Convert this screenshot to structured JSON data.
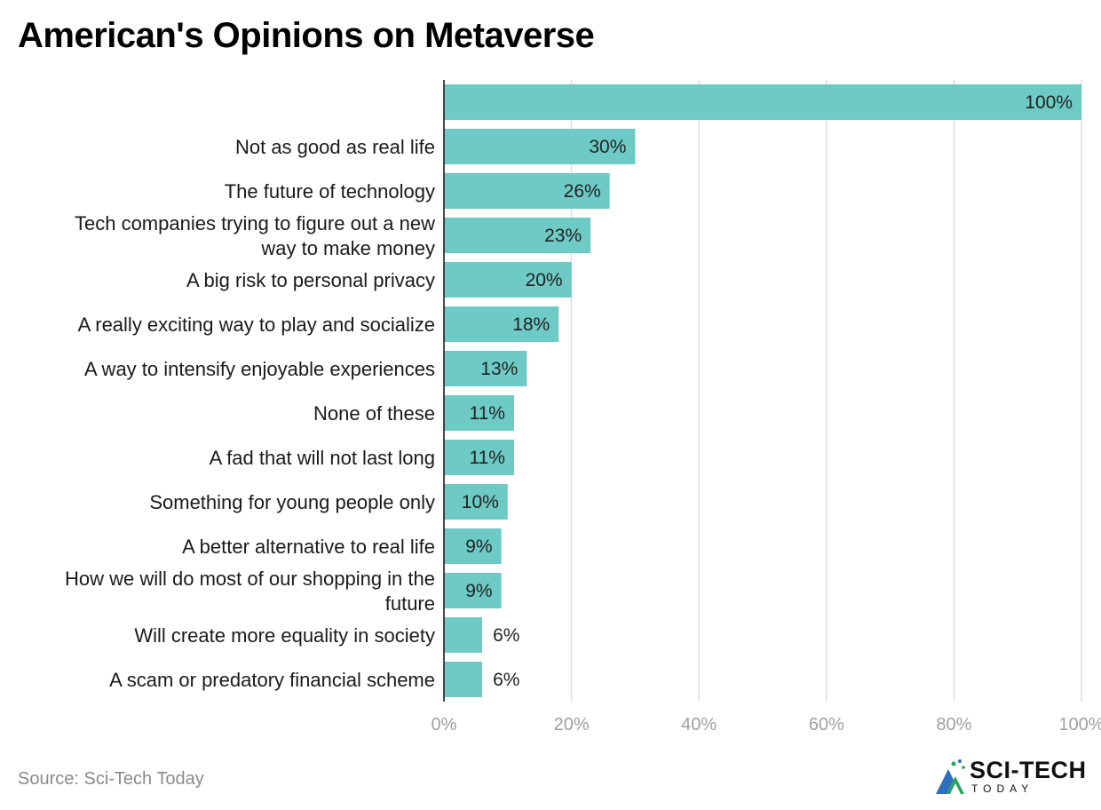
{
  "chart_data": {
    "type": "bar",
    "orientation": "horizontal",
    "title": "American's Opinions on Metaverse",
    "categories": [
      "",
      "Not as good as real life",
      "The future of technology",
      "Tech companies trying to figure out a new way to make money",
      "A big risk to personal privacy",
      "A really exciting way to play and socialize",
      "A way to intensify enjoyable experiences",
      "None of these",
      "A fad that will not last long",
      "Something for young people only",
      "A better alternative to real life",
      "How we will do most of our shopping in the future",
      "Will create more equality in society",
      "A scam or predatory financial scheme"
    ],
    "category_lines": [
      [],
      [
        "Not as good as real life"
      ],
      [
        "The future of technology"
      ],
      [
        "Tech companies trying to figure out a new",
        "way to make money"
      ],
      [
        "A big risk to personal privacy"
      ],
      [
        "A really exciting way to play and socialize"
      ],
      [
        "A way to intensify enjoyable experiences"
      ],
      [
        "None of these"
      ],
      [
        "A fad that will not last long"
      ],
      [
        "Something for young people only"
      ],
      [
        "A better alternative to real life"
      ],
      [
        "How we will do most of our shopping in the",
        "future"
      ],
      [
        "Will create more equality in society"
      ],
      [
        "A scam or predatory financial scheme"
      ]
    ],
    "values": [
      100,
      30,
      26,
      23,
      20,
      18,
      13,
      11,
      11,
      10,
      9,
      9,
      6,
      6
    ],
    "value_labels": [
      "100%",
      "30%",
      "26%",
      "23%",
      "20%",
      "18%",
      "13%",
      "11%",
      "11%",
      "10%",
      "9%",
      "9%",
      "6%",
      "6%"
    ],
    "xlim": [
      0,
      100
    ],
    "xticks": [
      0,
      20,
      40,
      60,
      80,
      100
    ],
    "xtick_labels": [
      "0%",
      "20%",
      "40%",
      "60%",
      "80%",
      "100%"
    ],
    "xlabel": "",
    "ylabel": "",
    "grid": true,
    "bar_color": "#6ecac5",
    "grid_color": "#dedede",
    "tick_label_color": "#a0a0a0"
  },
  "footer": {
    "source": "Source: Sci-Tech Today",
    "logo_name": "SCI-TECH",
    "logo_sub": "TODAY"
  }
}
